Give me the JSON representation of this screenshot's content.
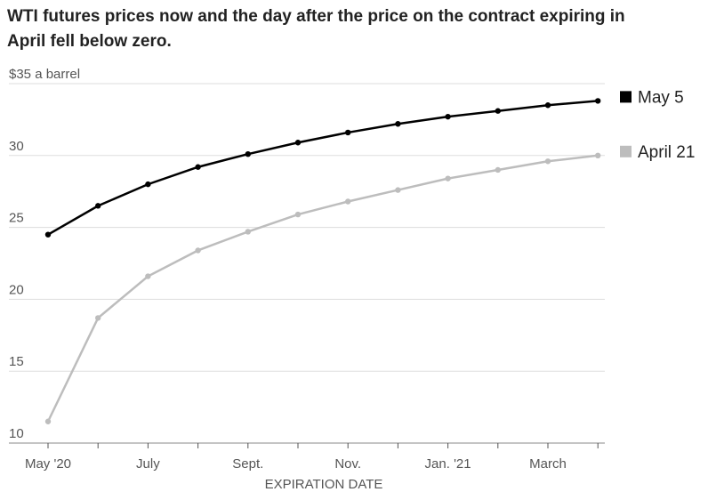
{
  "chart_data": {
    "type": "line",
    "title": [
      "WTI futures prices now and the day after the price on the contract expiring in",
      "April fell below zero."
    ],
    "x_label": "EXPIRATION DATE",
    "categories": [
      "May '20",
      null,
      "July",
      null,
      "Sept.",
      null,
      "Nov.",
      null,
      "Jan. '21",
      null,
      "March",
      null
    ],
    "series": [
      {
        "name": "May 5",
        "color": "#000000",
        "values": [
          24.5,
          26.5,
          28.0,
          29.2,
          30.1,
          30.9,
          31.6,
          32.2,
          32.7,
          33.1,
          33.5,
          33.8
        ]
      },
      {
        "name": "April 21",
        "color": "#bdbdbd",
        "values": [
          11.5,
          18.7,
          21.6,
          23.4,
          24.7,
          25.9,
          26.8,
          27.6,
          28.4,
          29.0,
          29.6,
          30.0
        ]
      }
    ],
    "ylim": [
      10,
      35
    ],
    "yticks": [
      10,
      15,
      20,
      25,
      30,
      {
        "value": 35,
        "label": "$35 a barrel"
      }
    ],
    "grid": true
  }
}
